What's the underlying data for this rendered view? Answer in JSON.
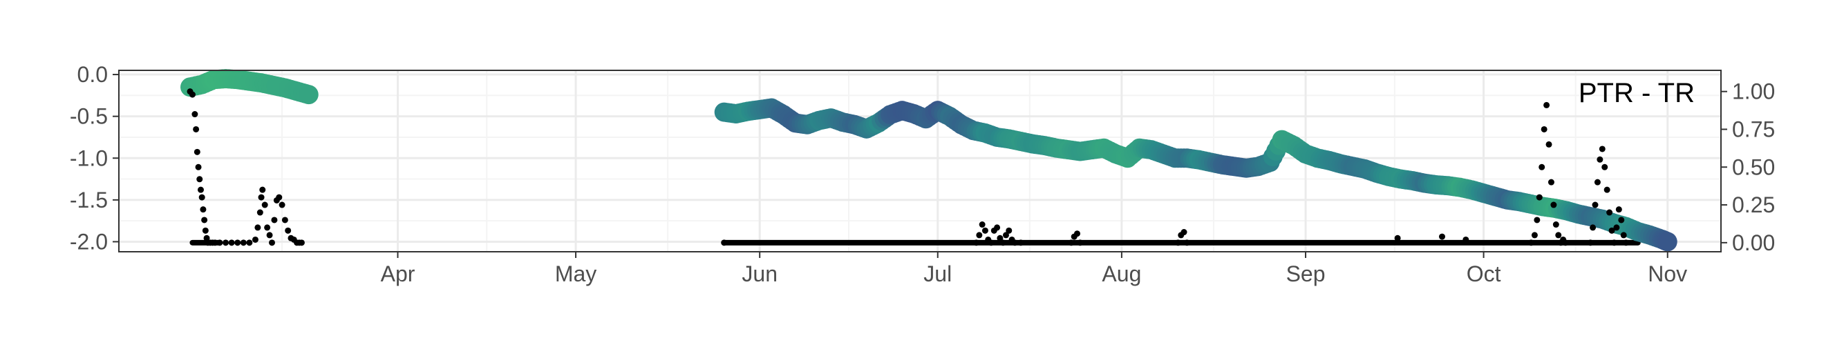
{
  "chart_data": {
    "type": "scatter",
    "title": "",
    "panel_label": "PTR - TR",
    "xlabel": "",
    "ylabel": "",
    "y2label": "",
    "x_ticks": [
      "Apr",
      "May",
      "Jun",
      "Jul",
      "Aug",
      "Sep",
      "Oct",
      "Nov"
    ],
    "x_tick_days": [
      31,
      61,
      92,
      122,
      153,
      184,
      214,
      245
    ],
    "xlim_days": [
      -16,
      254
    ],
    "y_ticks": [
      "0.0",
      "-0.5",
      "-1.0",
      "-1.5",
      "-2.0"
    ],
    "y_tick_values": [
      0.0,
      -0.5,
      -1.0,
      -1.5,
      -2.0
    ],
    "ylim": [
      -2.12,
      0.05
    ],
    "y2_ticks": [
      "1.00",
      "0.75",
      "0.50",
      "0.25",
      "0.00"
    ],
    "y2_tick_values": [
      1.0,
      0.75,
      0.5,
      0.25,
      0.0
    ],
    "y2lim": [
      -0.06,
      1.14
    ],
    "grid": true,
    "colors": {
      "panel_border": "#333333",
      "grid_major": "#ebebeb",
      "grid_minor": "#f4f4f4",
      "point_small": "#000000",
      "viridis_low": "#3b4a8a",
      "viridis_mid": "#2a8b8a",
      "viridis_high": "#3db87a"
    },
    "series": [
      {
        "mark": "large-circles",
        "axis": "left",
        "color_scale": "viridis",
        "x_day": [
          -4,
          -2,
          0,
          2,
          4,
          6,
          8,
          10,
          12,
          14,
          16,
          86,
          88,
          90,
          92,
          94,
          96,
          98,
          100,
          102,
          104,
          106,
          108,
          110,
          112,
          114,
          116,
          118,
          120,
          122,
          124,
          126,
          128,
          130,
          132,
          134,
          136,
          138,
          140,
          142,
          144,
          146,
          148,
          150,
          152,
          154,
          156,
          158,
          160,
          162,
          164,
          166,
          168,
          170,
          172,
          174,
          176,
          178,
          180,
          182,
          184,
          186,
          188,
          190,
          192,
          194,
          196,
          198,
          200,
          202,
          204,
          206,
          208,
          210,
          212,
          214,
          216,
          218,
          220,
          222,
          224,
          226,
          228,
          230,
          232,
          234,
          236,
          238,
          240,
          242,
          244,
          245
        ],
        "y": [
          -0.15,
          -0.12,
          -0.06,
          -0.05,
          -0.06,
          -0.08,
          -0.1,
          -0.13,
          -0.16,
          -0.2,
          -0.24,
          -0.45,
          -0.47,
          -0.44,
          -0.42,
          -0.4,
          -0.48,
          -0.58,
          -0.6,
          -0.55,
          -0.52,
          -0.57,
          -0.6,
          -0.65,
          -0.58,
          -0.48,
          -0.43,
          -0.47,
          -0.53,
          -0.43,
          -0.5,
          -0.6,
          -0.67,
          -0.7,
          -0.75,
          -0.77,
          -0.8,
          -0.83,
          -0.85,
          -0.88,
          -0.9,
          -0.92,
          -0.9,
          -0.88,
          -0.95,
          -1.0,
          -0.88,
          -0.9,
          -0.95,
          -1.0,
          -1.0,
          -1.02,
          -1.05,
          -1.08,
          -1.1,
          -1.12,
          -1.1,
          -1.05,
          -0.78,
          -0.85,
          -0.95,
          -1.0,
          -1.03,
          -1.07,
          -1.1,
          -1.13,
          -1.18,
          -1.22,
          -1.25,
          -1.27,
          -1.3,
          -1.32,
          -1.33,
          -1.35,
          -1.38,
          -1.42,
          -1.46,
          -1.5,
          -1.52,
          -1.55,
          -1.58,
          -1.6,
          -1.63,
          -1.67,
          -1.7,
          -1.73,
          -1.78,
          -1.82,
          -1.88,
          -1.92,
          -1.97,
          -2.0
        ],
        "color_value": [
          0.85,
          0.9,
          0.95,
          0.93,
          0.9,
          0.88,
          0.85,
          0.83,
          0.82,
          0.8,
          0.78,
          0.45,
          0.5,
          0.55,
          0.4,
          0.3,
          0.2,
          0.15,
          0.3,
          0.45,
          0.4,
          0.3,
          0.2,
          0.35,
          0.5,
          0.15,
          0.1,
          0.12,
          0.2,
          0.1,
          0.3,
          0.2,
          0.3,
          0.5,
          0.45,
          0.6,
          0.65,
          0.55,
          0.6,
          0.7,
          0.75,
          0.65,
          0.7,
          0.8,
          0.75,
          0.8,
          0.72,
          0.55,
          0.45,
          0.35,
          0.3,
          0.5,
          0.4,
          0.2,
          0.15,
          0.2,
          0.3,
          0.4,
          0.75,
          0.7,
          0.6,
          0.55,
          0.45,
          0.4,
          0.3,
          0.35,
          0.4,
          0.55,
          0.6,
          0.45,
          0.3,
          0.5,
          0.6,
          0.8,
          0.65,
          0.45,
          0.3,
          0.2,
          0.4,
          0.6,
          0.75,
          0.85,
          0.6,
          0.4,
          0.25,
          0.35,
          0.5,
          0.6,
          0.45,
          0.3,
          0.15,
          0.1
        ]
      },
      {
        "mark": "small-points",
        "axis": "right",
        "color": "#000000",
        "x_day": [
          -4,
          -3.6,
          -3.2,
          -3,
          -2.8,
          -2.6,
          -2.4,
          -2.2,
          -2,
          -1.8,
          -1.6,
          -1.4,
          -1.2,
          -1,
          -0.6,
          -0.2,
          0.2,
          1,
          2,
          3,
          4,
          5,
          6,
          7,
          7.4,
          7.8,
          8,
          8.2,
          8.6,
          9,
          9.4,
          9.8,
          10.2,
          10.6,
          11,
          11.5,
          12,
          12.5,
          13,
          13.5,
          14,
          14.4,
          14.8,
          86,
          128.5,
          129,
          129.5,
          130,
          130.5,
          131,
          131.5,
          132,
          132.5,
          133,
          133.5,
          134,
          134.5,
          135,
          136,
          144.5,
          145,
          145.5,
          146,
          162.5,
          163,
          163.5,
          164,
          222,
          222.6,
          223,
          223.4,
          223.8,
          224.2,
          224.6,
          225,
          225.4,
          225.8,
          226.2,
          226.6,
          227,
          227.4,
          227.8,
          232,
          232.4,
          232.8,
          233.2,
          233.6,
          234,
          234.4,
          234.8,
          235.2,
          235.6,
          236,
          236.4,
          236.8,
          237.2,
          237.6,
          238,
          211,
          207,
          199.5
        ],
        "y": [
          1.0,
          0.98,
          0.85,
          0.75,
          0.6,
          0.5,
          0.42,
          0.35,
          0.3,
          0.22,
          0.15,
          0.08,
          0.03,
          0.0,
          0.0,
          0.0,
          0.0,
          0.0,
          0.0,
          0.0,
          0.0,
          0.0,
          0.0,
          0.02,
          0.1,
          0.2,
          0.3,
          0.35,
          0.25,
          0.1,
          0.05,
          0.0,
          0.15,
          0.28,
          0.3,
          0.25,
          0.15,
          0.08,
          0.03,
          0.02,
          0.0,
          0.0,
          0.0,
          0.0,
          0.0,
          0.05,
          0.12,
          0.08,
          0.02,
          0.0,
          0.08,
          0.1,
          0.03,
          0.0,
          0.05,
          0.08,
          0.02,
          0.0,
          0.0,
          0.0,
          0.04,
          0.06,
          0.0,
          0.0,
          0.05,
          0.07,
          0.0,
          0.0,
          0.05,
          0.15,
          0.3,
          0.5,
          0.75,
          0.91,
          0.65,
          0.4,
          0.25,
          0.12,
          0.05,
          0.0,
          0.02,
          0.0,
          0.0,
          0.1,
          0.25,
          0.4,
          0.55,
          0.62,
          0.5,
          0.35,
          0.2,
          0.08,
          0.0,
          0.1,
          0.22,
          0.15,
          0.05,
          0.0,
          0.02,
          0.04,
          0.03
        ],
        "baseline_runs": [
          [
            -3.6,
            0.8
          ],
          [
            86,
            240
          ]
        ]
      }
    ]
  }
}
